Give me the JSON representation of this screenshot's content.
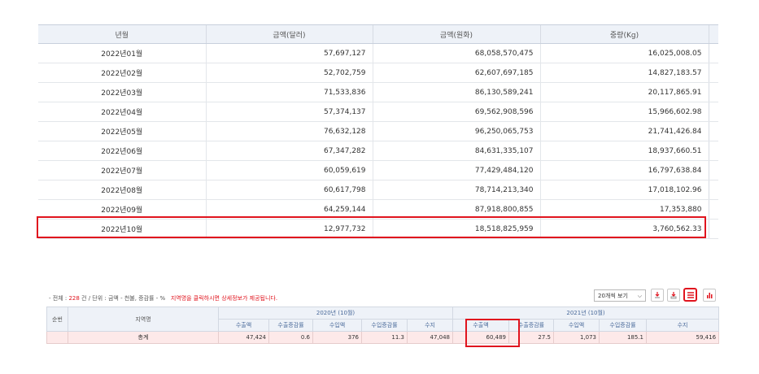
{
  "monthly_table": {
    "headers": [
      "년월",
      "금액(달러)",
      "금액(원화)",
      "중량(Kg)"
    ],
    "rows": [
      {
        "month": "2022년01월",
        "usd": "57,697,127",
        "krw": "68,058,570,475",
        "kg": "16,025,008.05"
      },
      {
        "month": "2022년02월",
        "usd": "52,702,759",
        "krw": "62,607,697,185",
        "kg": "14,827,183.57"
      },
      {
        "month": "2022년03월",
        "usd": "71,533,836",
        "krw": "86,130,589,241",
        "kg": "20,117,865.91"
      },
      {
        "month": "2022년04월",
        "usd": "57,374,137",
        "krw": "69,562,908,596",
        "kg": "15,966,602.98"
      },
      {
        "month": "2022년05월",
        "usd": "76,632,128",
        "krw": "96,250,065,753",
        "kg": "21,741,426.84"
      },
      {
        "month": "2022년06월",
        "usd": "67,347,282",
        "krw": "84,631,335,107",
        "kg": "18,937,660.51"
      },
      {
        "month": "2022년07월",
        "usd": "60,059,619",
        "krw": "77,429,484,120",
        "kg": "16,797,638.84"
      },
      {
        "month": "2022년08월",
        "usd": "60,617,798",
        "krw": "78,714,213,340",
        "kg": "17,018,102.96"
      },
      {
        "month": "2022년09월",
        "usd": "64,259,144",
        "krw": "87,918,800,855",
        "kg": "17,353,880"
      },
      {
        "month": "2022년10월",
        "usd": "12,977,732",
        "krw": "18,518,825,959",
        "kg": "3,760,562.33"
      }
    ]
  },
  "info": {
    "prefix": "- 전체 : ",
    "count": "228",
    "suffix": " 건 / 단위 : 금액 - 천불, 증감률 - %",
    "notice": "지역명을 클릭하시면 상세정보가 제공됩니다."
  },
  "controls": {
    "page_size": "20개씩 보기",
    "icons": [
      "download-icon",
      "print-icon",
      "list-view-icon",
      "chart-view-icon"
    ]
  },
  "region_table": {
    "col_rank": "순번",
    "col_region": "지역명",
    "period1": "2020년 (10월)",
    "period2": "2021년 (10월)",
    "sub_headers": [
      "수출액",
      "수출증감률",
      "수입액",
      "수입증감률",
      "수지"
    ],
    "total_row": {
      "rank": "",
      "region": "총계",
      "p1": [
        "47,424",
        "0.6",
        "376",
        "11.3",
        "47,048"
      ],
      "p2": [
        "60,489",
        "27.5",
        "1,073",
        "185.1",
        "59,416"
      ]
    }
  },
  "colors": {
    "highlight": "#e0141e",
    "header_bg": "#eef2f8",
    "total_row_bg": "#fde9e9"
  }
}
